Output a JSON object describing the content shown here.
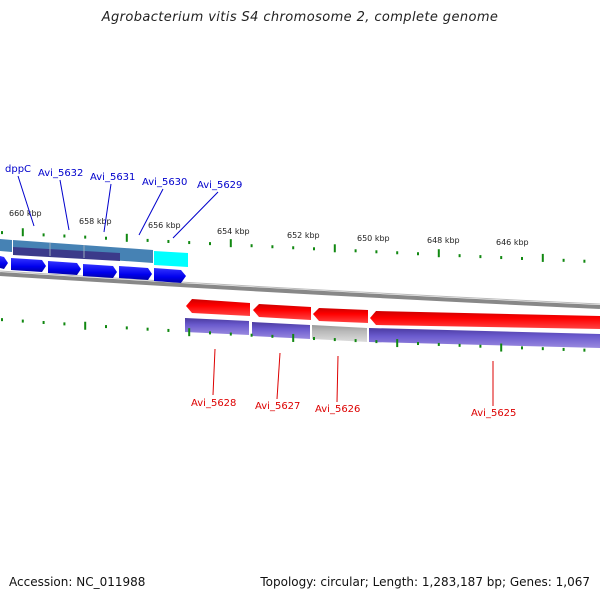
{
  "title": "Agrobacterium vitis S4 chromosome 2, complete genome",
  "footer": {
    "accession": "Accession: NC_011988",
    "summary": "Topology: circular; Length: 1,283,187 bp; Genes: 1,067"
  },
  "colors": {
    "forward_cds": "#0000ee",
    "reverse_cds": "#ee0000",
    "cog_purple": "#6a5acd",
    "cog_steel": "#4682b4",
    "cog_cyan": "#00ffff",
    "cog_gray": "#bbbbbb",
    "tick": "#118811",
    "backbone": "#888888",
    "label_fwd": "#0000cc",
    "label_rev": "#dd0000"
  },
  "scale_labels": [
    "660 kbp",
    "658 kbp",
    "656 kbp",
    "654 kbp",
    "652 kbp",
    "650 kbp",
    "648 kbp",
    "646 kbp"
  ],
  "forward_genes": [
    {
      "label": "dppC"
    },
    {
      "label": "Avi_5632"
    },
    {
      "label": "Avi_5631"
    },
    {
      "label": "Avi_5630"
    },
    {
      "label": "Avi_5629"
    }
  ],
  "reverse_genes": [
    {
      "label": "Avi_5628"
    },
    {
      "label": "Avi_5627"
    },
    {
      "label": "Avi_5626"
    },
    {
      "label": "Avi_5625"
    }
  ]
}
